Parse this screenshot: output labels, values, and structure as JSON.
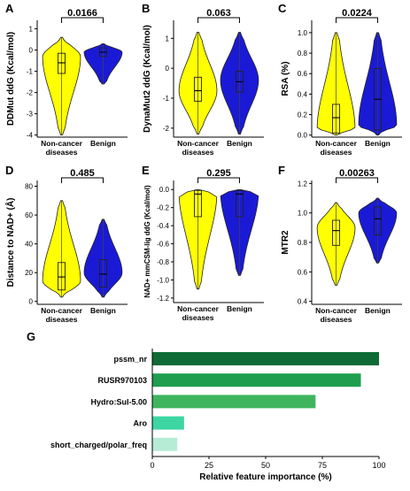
{
  "colors": {
    "non_cancer": "#ffff00",
    "benign": "#1a1ad6",
    "bar_1": "#0e6b35",
    "bar_2": "#1e9e4e",
    "bar_3": "#3fb45f",
    "bar_4": "#3dd6a2",
    "bar_5": "#b6ecd5"
  },
  "chart_data": [
    {
      "panel": "A",
      "type": "violin",
      "ylabel": "DDMut ddG (Kcal/mol)",
      "categories": [
        "Non-cancer diseases",
        "Benign"
      ],
      "ylim": [
        -4.1,
        1.4
      ],
      "yticks": [
        -4,
        -3,
        -2,
        -1,
        0,
        1
      ],
      "pvalue": "0.0166",
      "series": [
        {
          "name": "Non-cancer diseases",
          "ymin": -4.0,
          "ymax": 0.6,
          "q1": -1.1,
          "median": -0.6,
          "q3": -0.15,
          "mode": -0.3
        },
        {
          "name": "Benign",
          "ymin": -1.6,
          "ymax": 0.3,
          "q1": -0.3,
          "median": -0.1,
          "q3": 0.1,
          "mode": -0.1
        }
      ]
    },
    {
      "panel": "B",
      "type": "violin",
      "ylabel": "DynaMut2 ddG (Kcal/mol)",
      "categories": [
        "Non-cancer diseases",
        "Benign"
      ],
      "ylim": [
        -2.3,
        1.6
      ],
      "yticks": [
        -2,
        -1,
        0,
        1
      ],
      "pvalue": "0.063",
      "series": [
        {
          "name": "Non-cancer diseases",
          "ymin": -2.2,
          "ymax": 1.2,
          "q1": -1.1,
          "median": -0.75,
          "q3": -0.3,
          "mode": -0.75
        },
        {
          "name": "Benign",
          "ymin": -2.2,
          "ymax": 1.2,
          "q1": -0.8,
          "median": -0.45,
          "q3": -0.1,
          "mode": -0.4
        }
      ]
    },
    {
      "panel": "C",
      "type": "violin",
      "ylabel": "RSA (%)",
      "categories": [
        "Non-cancer diseases",
        "Benign"
      ],
      "ylim": [
        -0.02,
        1.12
      ],
      "yticks": [
        0.0,
        0.2,
        0.4,
        0.6,
        0.8,
        1.0
      ],
      "pvalue": "0.0224",
      "series": [
        {
          "name": "Non-cancer diseases",
          "ymin": 0.0,
          "ymax": 1.0,
          "q1": 0.02,
          "median": 0.17,
          "q3": 0.3,
          "mode": 0.05
        },
        {
          "name": "Benign",
          "ymin": 0.0,
          "ymax": 1.0,
          "q1": 0.05,
          "median": 0.35,
          "q3": 0.65,
          "mode": 0.1
        }
      ]
    },
    {
      "panel": "D",
      "type": "violin",
      "ylabel": "Distance to NAD+ (Å)",
      "categories": [
        "Non-cancer diseases",
        "Benign"
      ],
      "ylim": [
        -2,
        84
      ],
      "yticks": [
        0,
        20,
        40,
        60,
        80
      ],
      "pvalue": "0.485",
      "series": [
        {
          "name": "Non-cancer diseases",
          "ymin": 3,
          "ymax": 70,
          "q1": 8,
          "median": 17,
          "q3": 27,
          "mode": 14
        },
        {
          "name": "Benign",
          "ymin": 3,
          "ymax": 57,
          "q1": 10,
          "median": 19,
          "q3": 29,
          "mode": 20
        }
      ]
    },
    {
      "panel": "E",
      "type": "violin",
      "ylabel": "NAD+ mmCSM-lig ddG (Kcal/mol)",
      "categories": [
        "Non-cancer diseases",
        "Benign"
      ],
      "ylim": [
        -1.25,
        0.1
      ],
      "yticks": [
        -1.2,
        -1.0,
        -0.8,
        -0.6,
        -0.4,
        -0.2,
        0.0
      ],
      "pvalue": "0.295",
      "series": [
        {
          "name": "Non-cancer diseases",
          "ymin": -1.1,
          "ymax": 0.0,
          "q1": -0.3,
          "median": -0.05,
          "q3": -0.01,
          "mode": -0.02
        },
        {
          "name": "Benign",
          "ymin": -0.95,
          "ymax": 0.0,
          "q1": -0.3,
          "median": -0.05,
          "q3": -0.01,
          "mode": -0.02
        }
      ]
    },
    {
      "panel": "F",
      "type": "violin",
      "ylabel": "MTR2",
      "categories": [
        "Non-cancer diseases",
        "Benign"
      ],
      "ylim": [
        0.38,
        1.22
      ],
      "yticks": [
        0.4,
        0.6,
        0.8,
        1.0,
        1.2
      ],
      "pvalue": "0.00263",
      "series": [
        {
          "name": "Non-cancer diseases",
          "ymin": 0.51,
          "ymax": 1.07,
          "q1": 0.78,
          "median": 0.88,
          "q3": 0.95,
          "mode": 0.9
        },
        {
          "name": "Benign",
          "ymin": 0.66,
          "ymax": 1.1,
          "q1": 0.85,
          "median": 0.96,
          "q3": 1.04,
          "mode": 1.0
        }
      ]
    },
    {
      "panel": "G",
      "type": "bar",
      "orientation": "horizontal",
      "xlabel": "Relative feature importance (%)",
      "categories": [
        "pssm_nr",
        "RUSR970103",
        "Hydro:Sul-5.00",
        "Aro",
        "short_charged/polar_freq"
      ],
      "values": [
        100,
        92,
        72,
        14,
        11
      ],
      "xlim": [
        0,
        100
      ],
      "xticks": [
        0,
        25,
        50,
        75,
        100
      ]
    }
  ]
}
